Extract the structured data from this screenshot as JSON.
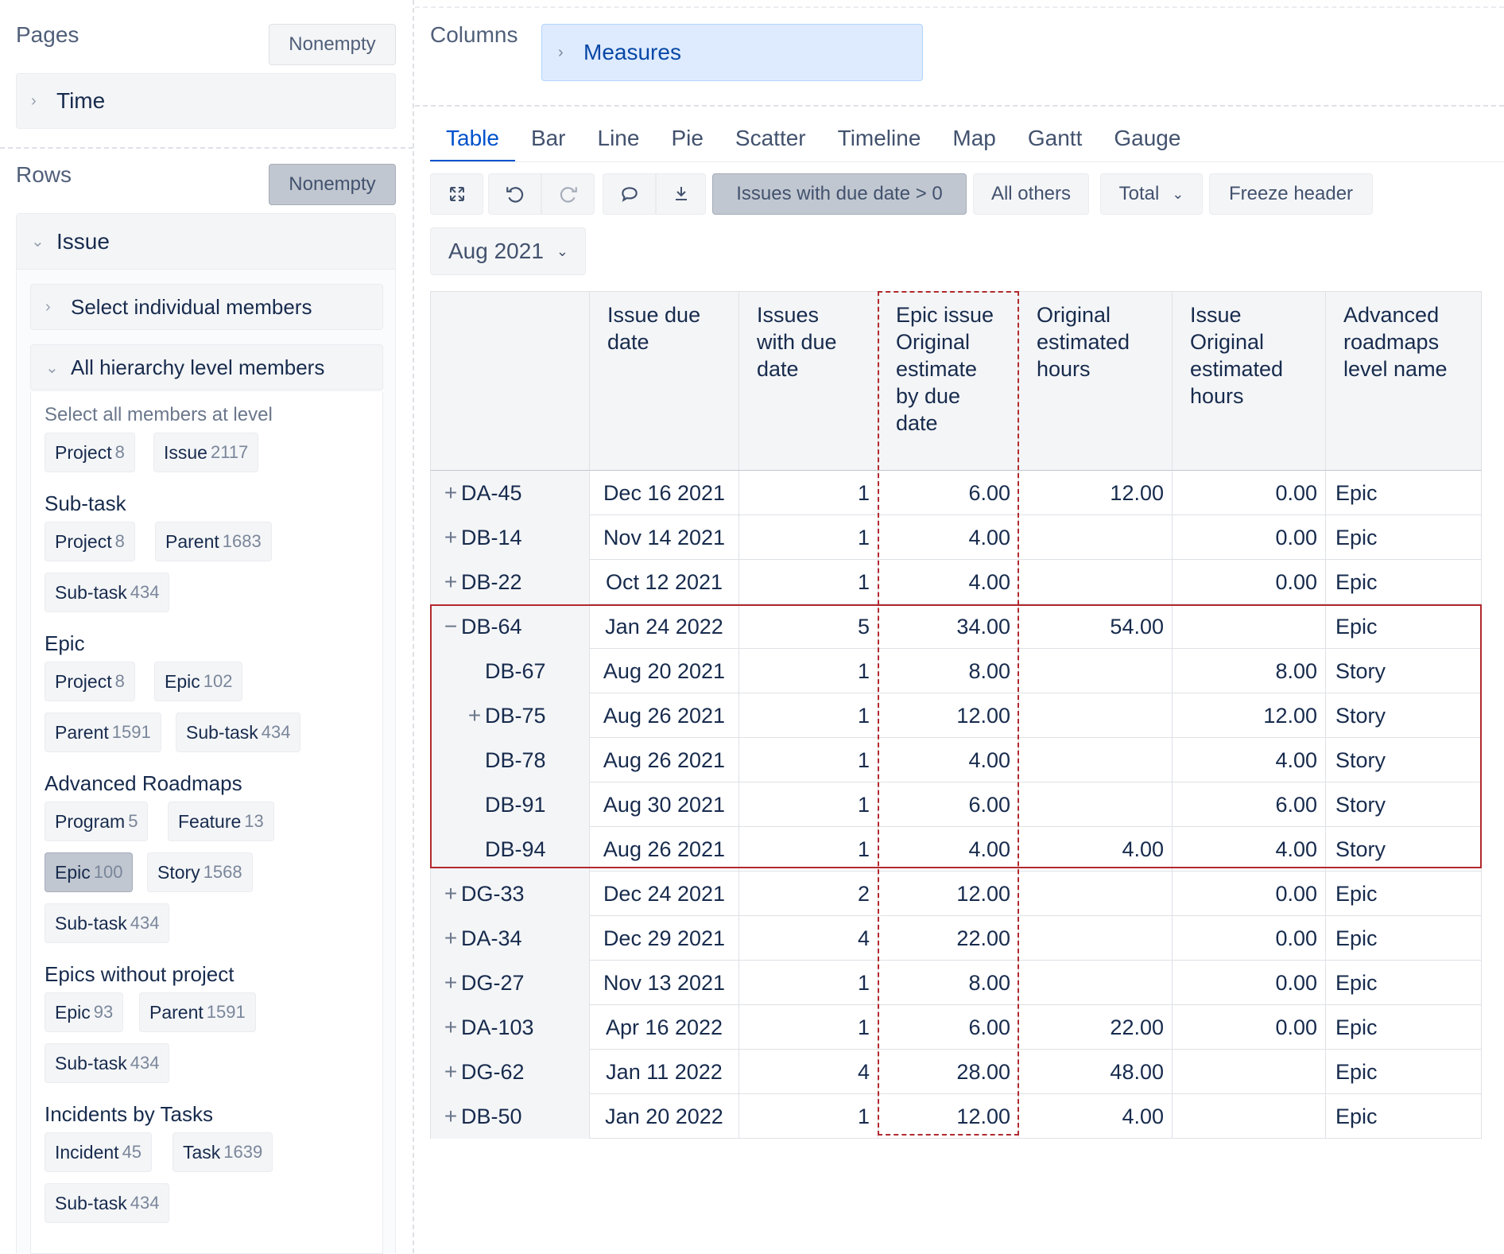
{
  "pages": {
    "title": "Pages",
    "nonempty_label": "Nonempty",
    "dimension": "Time"
  },
  "rows": {
    "title": "Rows",
    "nonempty_label": "Nonempty",
    "dimension": "Issue",
    "select_individual": "Select individual members",
    "all_levels": "All hierarchy level members",
    "select_all_caption": "Select all members at level",
    "default_chips": [
      {
        "label": "Project",
        "count": "8"
      },
      {
        "label": "Issue",
        "count": "2117"
      }
    ],
    "groups": [
      {
        "title": "Sub-task",
        "chips": [
          {
            "label": "Project",
            "count": "8"
          },
          {
            "label": "Parent",
            "count": "1683"
          },
          {
            "label": "Sub-task",
            "count": "434"
          }
        ]
      },
      {
        "title": "Epic",
        "chips": [
          {
            "label": "Project",
            "count": "8"
          },
          {
            "label": "Epic",
            "count": "102"
          },
          {
            "label": "Parent",
            "count": "1591"
          },
          {
            "label": "Sub-task",
            "count": "434"
          }
        ]
      },
      {
        "title": "Advanced Roadmaps",
        "chips": [
          {
            "label": "Program",
            "count": "5"
          },
          {
            "label": "Feature",
            "count": "13"
          },
          {
            "label": "Epic",
            "count": "100",
            "selected": true
          },
          {
            "label": "Story",
            "count": "1568"
          },
          {
            "label": "Sub-task",
            "count": "434"
          }
        ]
      },
      {
        "title": "Epics without project",
        "chips": [
          {
            "label": "Epic",
            "count": "93"
          },
          {
            "label": "Parent",
            "count": "1591"
          },
          {
            "label": "Sub-task",
            "count": "434"
          }
        ]
      },
      {
        "title": "Incidents by Tasks",
        "chips": [
          {
            "label": "Incident",
            "count": "45"
          },
          {
            "label": "Task",
            "count": "1639"
          },
          {
            "label": "Sub-task",
            "count": "434"
          }
        ]
      }
    ]
  },
  "columns": {
    "title": "Columns",
    "dimension": "Measures"
  },
  "tabs": [
    "Table",
    "Bar",
    "Line",
    "Pie",
    "Scatter",
    "Timeline",
    "Map",
    "Gantt",
    "Gauge"
  ],
  "active_tab": "Table",
  "toolbar": {
    "filter_label": "Issues with due date > 0",
    "all_others_label": "All others",
    "total_label": "Total",
    "freeze_label": "Freeze header"
  },
  "period": "Aug 2021",
  "table": {
    "headers": [
      "Issue due date",
      "Issues with due date",
      "Epic issue Original estimate by due date",
      "Original estimated hours",
      "Issue Original estimated hours",
      "Advanced roadmaps level name"
    ],
    "rows": [
      {
        "key": "DA-45",
        "exp": "+",
        "indent": 0,
        "due": "Dec 16 2021",
        "count": "1",
        "epic_est": "6.00",
        "orig": "12.00",
        "issue_orig": "0.00",
        "level": "Epic"
      },
      {
        "key": "DB-14",
        "exp": "+",
        "indent": 0,
        "due": "Nov 14 2021",
        "count": "1",
        "epic_est": "4.00",
        "orig": "",
        "issue_orig": "0.00",
        "level": "Epic"
      },
      {
        "key": "DB-22",
        "exp": "+",
        "indent": 0,
        "due": "Oct 12 2021",
        "count": "1",
        "epic_est": "4.00",
        "orig": "",
        "issue_orig": "0.00",
        "level": "Epic"
      },
      {
        "key": "DB-64",
        "exp": "−",
        "indent": 0,
        "due": "Jan 24 2022",
        "count": "5",
        "epic_est": "34.00",
        "orig": "54.00",
        "issue_orig": "",
        "level": "Epic"
      },
      {
        "key": "DB-67",
        "exp": "",
        "indent": 1,
        "due": "Aug 20 2021",
        "count": "1",
        "epic_est": "8.00",
        "orig": "",
        "issue_orig": "8.00",
        "level": "Story"
      },
      {
        "key": "DB-75",
        "exp": "+",
        "indent": 1,
        "due": "Aug 26 2021",
        "count": "1",
        "epic_est": "12.00",
        "orig": "",
        "issue_orig": "12.00",
        "level": "Story"
      },
      {
        "key": "DB-78",
        "exp": "",
        "indent": 1,
        "due": "Aug 26 2021",
        "count": "1",
        "epic_est": "4.00",
        "orig": "",
        "issue_orig": "4.00",
        "level": "Story"
      },
      {
        "key": "DB-91",
        "exp": "",
        "indent": 1,
        "due": "Aug 30 2021",
        "count": "1",
        "epic_est": "6.00",
        "orig": "",
        "issue_orig": "6.00",
        "level": "Story"
      },
      {
        "key": "DB-94",
        "exp": "",
        "indent": 1,
        "due": "Aug 26 2021",
        "count": "1",
        "epic_est": "4.00",
        "orig": "4.00",
        "issue_orig": "4.00",
        "level": "Story"
      },
      {
        "key": "DG-33",
        "exp": "+",
        "indent": 0,
        "due": "Dec 24 2021",
        "count": "2",
        "epic_est": "12.00",
        "orig": "",
        "issue_orig": "0.00",
        "level": "Epic"
      },
      {
        "key": "DA-34",
        "exp": "+",
        "indent": 0,
        "due": "Dec 29 2021",
        "count": "4",
        "epic_est": "22.00",
        "orig": "",
        "issue_orig": "0.00",
        "level": "Epic"
      },
      {
        "key": "DG-27",
        "exp": "+",
        "indent": 0,
        "due": "Nov 13 2021",
        "count": "1",
        "epic_est": "8.00",
        "orig": "",
        "issue_orig": "0.00",
        "level": "Epic"
      },
      {
        "key": "DA-103",
        "exp": "+",
        "indent": 0,
        "due": "Apr 16 2022",
        "count": "1",
        "epic_est": "6.00",
        "orig": "22.00",
        "issue_orig": "0.00",
        "level": "Epic"
      },
      {
        "key": "DG-62",
        "exp": "+",
        "indent": 0,
        "due": "Jan 11 2022",
        "count": "4",
        "epic_est": "28.00",
        "orig": "48.00",
        "issue_orig": "",
        "level": "Epic"
      },
      {
        "key": "DB-50",
        "exp": "+",
        "indent": 0,
        "due": "Jan 20 2022",
        "count": "1",
        "epic_est": "12.00",
        "orig": "4.00",
        "issue_orig": "",
        "level": "Epic"
      }
    ]
  }
}
